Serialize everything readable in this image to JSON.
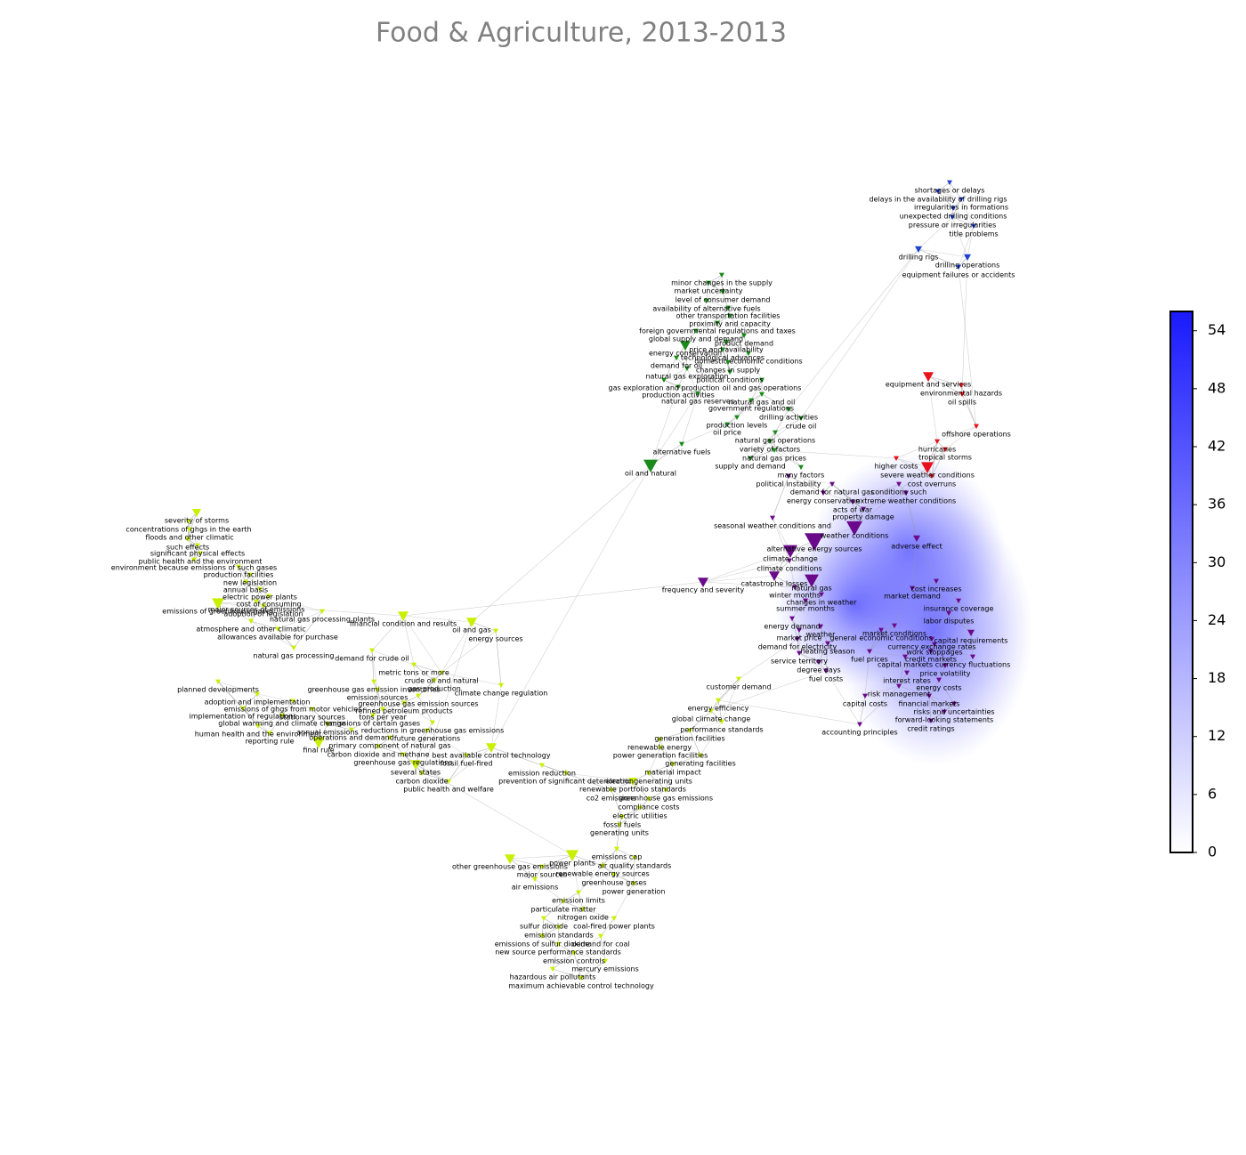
{
  "title": "Food & Agriculture, 2013-2013",
  "colorbar": {
    "ylim": [
      0,
      56
    ],
    "yticks": [
      0,
      6,
      12,
      18,
      24,
      30,
      36,
      42,
      48,
      54
    ],
    "color": "#1a1aff"
  },
  "clusters": [
    {
      "color": "#2040d0",
      "nodes": [
        "shortages or delays",
        "delays in the availability of drilling rigs",
        "irregularities in formations",
        "unexpected drilling conditions",
        "pressure or irregularities",
        "title problems",
        "drilling rigs",
        "drilling operations",
        "equipment failures or accidents"
      ]
    },
    {
      "color": "#e8101a",
      "nodes": [
        "equipment and services",
        "environmental hazards",
        "oil spills",
        "offshore operations",
        "hurricanes",
        "tropical storms",
        "higher costs",
        "severe weather conditions",
        "cost overruns"
      ]
    },
    {
      "color": "#1a8a1a",
      "nodes": [
        "minor changes in the supply",
        "market uncertainty",
        "level of consumer demand",
        "availability of alternative fuels",
        "other transportation facilities",
        "proximity and capacity",
        "foreign governmental regulations and taxes",
        "global supply and demand",
        "product demand",
        "price and availability",
        "energy conservation",
        "technological advances",
        "domestic economic conditions",
        "changes in supply",
        "demand for oil",
        "political conditions",
        "natural gas exploration",
        "gas exploration and production",
        "oil and gas operations",
        "production activities",
        "natural gas reserves",
        "natural gas and oil",
        "government regulations",
        "drilling activities",
        "crude oil",
        "production levels",
        "oil price",
        "natural gas operations",
        "variety of factors",
        "alternative fuels",
        "natural gas prices",
        "supply and demand",
        "oil and natural",
        "many factors"
      ]
    },
    {
      "color": "#6a0a8a",
      "nodes": [
        "political instability",
        "demand for natural gas",
        "conditions such",
        "energy conservation",
        "extreme weather conditions",
        "acts of war",
        "property damage",
        "seasonal weather conditions and",
        "weather conditions",
        "adverse effect",
        "alternative energy sources",
        "climate change",
        "climate conditions",
        "catastrophe losses",
        "frequency and severity",
        "natural gas",
        "winter months",
        "cost increases",
        "changes in weather",
        "market demand",
        "summer months",
        "insurance coverage",
        "energy demand",
        "labor disputes",
        "market price",
        "demand for electricity",
        "heating season",
        "capital requirements",
        "currency exchange rates",
        "work stoppages",
        "service territory",
        "fuel prices",
        "credit markets",
        "capital markets",
        "currency fluctuations",
        "degree days",
        "price volatility",
        "fuel costs",
        "interest rates",
        "energy costs",
        "risk management",
        "capital costs",
        "financial markets",
        "risks and uncertainties",
        "forward-looking statements",
        "credit ratings",
        "accounting principles",
        "market conditions",
        "general economic conditions",
        "weather"
      ]
    },
    {
      "color": "#c8f000",
      "nodes": [
        "severity of storms",
        "concentrations of ghgs in the earth",
        "floods and other climatic",
        "such effects",
        "significant physical effects",
        "public health and the environment",
        "environment because emissions of such gases",
        "production facilities",
        "new legislation",
        "annual basis",
        "electric power plants",
        "cost of consuming",
        "emissions of greenhouse gases",
        "major sources of emissions",
        "adoption of legislation",
        "natural gas processing plants",
        "financial condition and results",
        "atmosphere and other climatic",
        "oil and gas",
        "allowances available for purchase",
        "energy sources",
        "natural gas processing",
        "demand for crude oil",
        "planned developments",
        "metric tons or more",
        "crude oil and natural",
        "gas production",
        "climate change regulation",
        "greenhouse gas emission inventories",
        "emission sources",
        "greenhouse gas emission sources",
        "refined petroleum products",
        "adoption and implementation",
        "emissions of ghgs from motor vehicles",
        "implementation of regulations",
        "global warming and climate change",
        "stationary sources",
        "tons per year",
        "emissions of certain gases",
        "reductions in greenhouse gas emissions",
        "human health and the environment",
        "annual emissions",
        "reporting rule",
        "operations and demand",
        "future generations",
        "primary component of natural gas",
        "carbon dioxide and methane",
        "best available control technology",
        "final rule",
        "greenhouse gas regulations",
        "fossil fuel-fired",
        "several states",
        "emission reduction",
        "carbon dioxide",
        "prevention of significant deterioration",
        "public health and welfare",
        "energy efficiency",
        "customer demand",
        "global climate change",
        "performance standards",
        "generation facilities",
        "renewable energy",
        "power generation facilities",
        "electric generating units",
        "generating facilities",
        "material impact",
        "renewable portfolio standards",
        "co2 emissions",
        "greenhouse gas emissions",
        "compliance costs",
        "electric utilities",
        "fossil fuels",
        "generating units",
        "emissions cap",
        "power plants",
        "air quality standards",
        "other greenhouse gas emissions",
        "major sources",
        "renewable energy sources",
        "greenhouse gases",
        "air emissions",
        "power generation",
        "emission limits",
        "particulate matter",
        "nitrogen oxide",
        "sulfur dioxide",
        "coal-fired power plants",
        "emission standards",
        "emissions of sulfur dioxide",
        "demand for coal",
        "new source performance standards",
        "emission controls",
        "mercury emissions",
        "hazardous air pollutants",
        "maximum achievable control technology"
      ]
    }
  ]
}
